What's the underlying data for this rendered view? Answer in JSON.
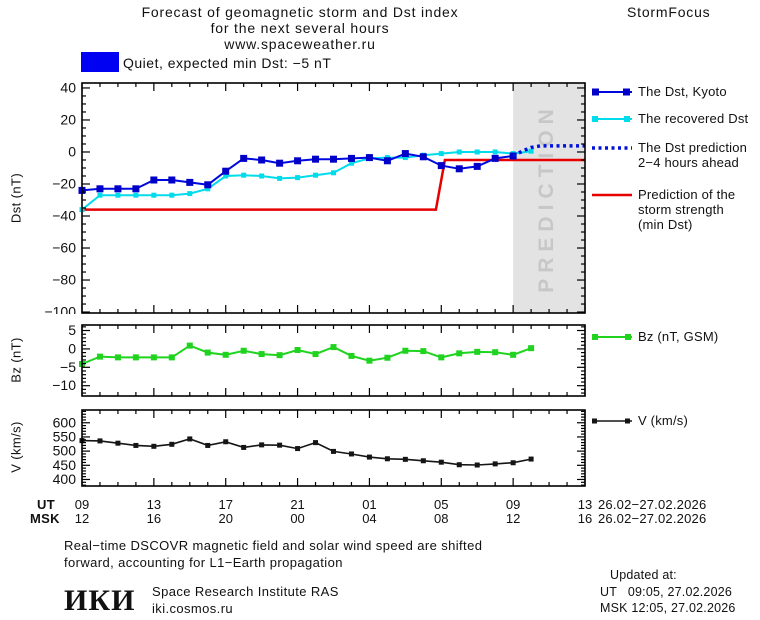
{
  "header": {
    "title_line1": "Forecast of geomagnetic storm and Dst index",
    "title_line2": "for the next several hours",
    "title_line3": "www.spaceweather.ru",
    "brand": "StormFocus"
  },
  "status": {
    "label": "Quiet, expected min Dst: −5 nT",
    "box_color": "#0000f2"
  },
  "legend": {
    "items": [
      {
        "label": "The Dst, Kyoto",
        "color": "#0008e0",
        "marker_color": "#0000c8"
      },
      {
        "label": "The recovered Dst",
        "color": "#00dcec",
        "marker_color": "#00dcec"
      },
      {
        "label": "The Dst prediction",
        "label2": "2−4 hours ahead",
        "color": "#0010dd"
      },
      {
        "label": "Prediction of the",
        "label2": "storm strength",
        "label3": "(min Dst)",
        "color": "#e80000"
      },
      {
        "label": "Bz (nT, GSM)",
        "color": "#1fd31f",
        "marker_color": "#1fd31f"
      },
      {
        "label": "V (km/s)",
        "color": "#151515",
        "marker_color": "#151515"
      }
    ]
  },
  "prediction_band": {
    "label": "PREDICTION",
    "from_hour": 24,
    "to_hour": 28,
    "fill": "#e3e3e3",
    "text_color": "#c7c7c7"
  },
  "xaxis": {
    "ut_label": "UT",
    "msk_label": "MSK",
    "ut_ticks": [
      "09",
      "13",
      "17",
      "21",
      "01",
      "05",
      "09",
      "13"
    ],
    "msk_ticks": [
      "12",
      "16",
      "20",
      "00",
      "04",
      "08",
      "12",
      "16"
    ],
    "ut_date": "26.02−27.02.2026",
    "msk_date": "26.02−27.02.2026"
  },
  "chart_data": [
    {
      "id": "dst",
      "type": "line",
      "ylabel": "Dst (nT)",
      "ylim": [
        -100.6,
        43.1
      ],
      "yticks": [
        40,
        20,
        0,
        -20,
        -40,
        -60,
        -80,
        -100
      ],
      "minor_step": 5,
      "x_hours": 28,
      "band": [
        24,
        28
      ],
      "series": [
        {
          "name": "Prediction of the storm strength (min Dst)",
          "color": "#e80000",
          "width": 2.5,
          "points": [
            [
              0,
              -36
            ],
            [
              19.7,
              -36
            ],
            [
              20.2,
              -5
            ],
            [
              28,
              -5
            ]
          ]
        },
        {
          "name": "The recovered Dst",
          "color": "#00dcec",
          "width": 2,
          "marker": "square",
          "marker_size": 5,
          "x_start": 0,
          "values": [
            -36,
            -27,
            -27,
            -27,
            -27,
            -27,
            -26,
            -23,
            -15,
            -14.5,
            -15,
            -16.5,
            -16,
            -14.5,
            -13,
            -7,
            -4,
            -3.5,
            -3.5,
            -2,
            -1,
            0,
            0,
            0,
            -1,
            0.5
          ]
        },
        {
          "name": "The Dst, Kyoto",
          "color": "#0008e0",
          "width": 2,
          "marker": "square",
          "marker_size": 7,
          "marker_color": "#0000c8",
          "x_start": 0,
          "values": [
            -24,
            -23,
            -23,
            -23,
            -17.5,
            -17.5,
            -19,
            -20.5,
            -12,
            -4,
            -5,
            -7,
            -5.5,
            -4.5,
            -4.5,
            -4,
            -3.5,
            -5.5,
            -1,
            -3,
            -8.5,
            -10.5,
            -9,
            -4,
            -2.5
          ]
        },
        {
          "name": "The Dst prediction 2−4 hours ahead",
          "color": "#0010dd",
          "width": 3.5,
          "style": "dotted",
          "points": [
            [
              24,
              -2.5
            ],
            [
              24.5,
              0.5
            ],
            [
              25,
              2.8
            ],
            [
              25.5,
              3.8
            ],
            [
              28,
              3.8
            ]
          ]
        }
      ]
    },
    {
      "id": "bz",
      "type": "line",
      "ylabel": "Bz (nT)",
      "ylim": [
        -12.8,
        6.5
      ],
      "yticks": [
        5,
        0,
        -5,
        -10
      ],
      "minor_step": 1,
      "x_hours": 28,
      "series": [
        {
          "name": "Bz (nT, GSM)",
          "color": "#1fd31f",
          "width": 2,
          "marker": "square",
          "marker_size": 6,
          "x_start": 0,
          "values": [
            -4.1,
            -2.1,
            -2.3,
            -2.3,
            -2.3,
            -2.3,
            0.9,
            -1,
            -1.6,
            -0.5,
            -1.4,
            -1.7,
            -0.3,
            -1.4,
            0.5,
            -1.9,
            -3.2,
            -2.4,
            -0.5,
            -0.6,
            -2.3,
            -1.2,
            -0.8,
            -0.9,
            -1.6,
            0.2
          ]
        }
      ]
    },
    {
      "id": "v",
      "type": "line",
      "ylabel": "V (km/s)",
      "ylim": [
        377,
        645
      ],
      "yticks": [
        600,
        550,
        500,
        450,
        400
      ],
      "minor_step": 10,
      "x_hours": 28,
      "series": [
        {
          "name": "V (km/s)",
          "color": "#151515",
          "width": 1.6,
          "marker": "square",
          "marker_size": 5,
          "x_start": 0,
          "values": [
            537,
            536,
            528,
            520,
            517,
            524,
            543,
            520,
            533,
            513,
            522,
            521,
            509,
            530,
            499,
            490,
            479,
            473,
            471,
            466,
            461,
            452,
            451,
            455,
            459,
            472
          ]
        }
      ]
    }
  ],
  "footer": {
    "note_line1": "Real−time DSCOVR magnetic field and solar wind speed are shifted",
    "note_line2": "forward, accounting for L1−Earth propagation",
    "logo": "ИКИ",
    "org": "Space Research Institute RAS",
    "site": "iki.cosmos.ru",
    "updated_label": "Updated at:",
    "updated_ut": "UT   09:05, 27.02.2026",
    "updated_msk": "MSK 12:05, 27.02.2026"
  }
}
